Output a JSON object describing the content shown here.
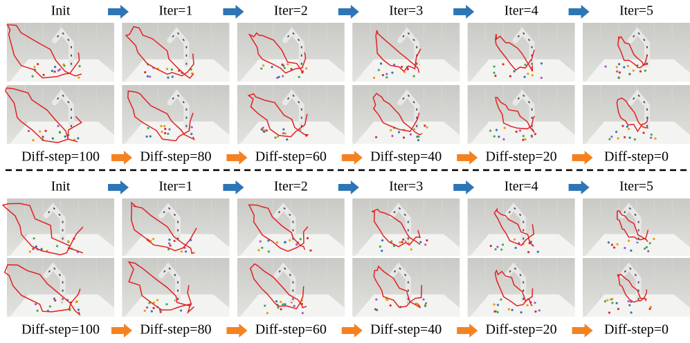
{
  "panels": [
    {
      "iteration_labels": [
        "Init",
        "Iter=1",
        "Iter=2",
        "Iter=3",
        "Iter=4",
        "Iter=5"
      ],
      "diff_step_labels": [
        "Diff-step=100",
        "Diff-step=80",
        "Diff-step=60",
        "Diff-step=40",
        "Diff-step=20",
        "Diff-step=0"
      ]
    },
    {
      "iteration_labels": [
        "Init",
        "Iter=1",
        "Iter=2",
        "Iter=3",
        "Iter=4",
        "Iter=5"
      ],
      "diff_step_labels": [
        "Diff-step=100",
        "Diff-step=80",
        "Diff-step=60",
        "Diff-step=40",
        "Diff-step=20",
        "Diff-step=0"
      ]
    }
  ]
}
